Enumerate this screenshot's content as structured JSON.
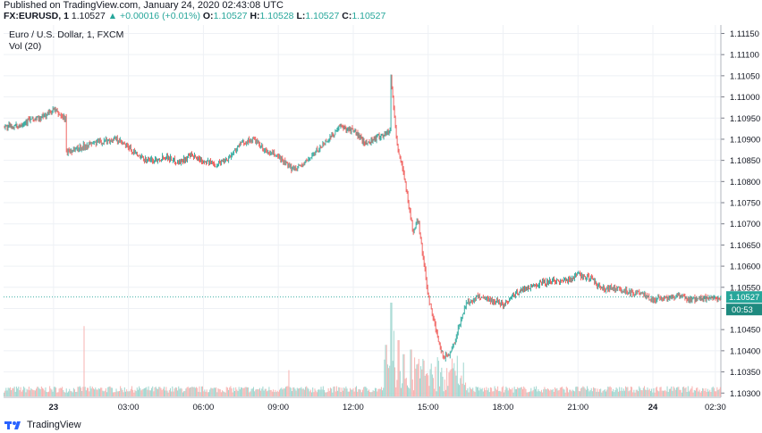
{
  "header": {
    "published": "Published on TradingView.com, January 24, 2020 02:43:08 UTC",
    "symbol": "FX:EURUSD, 1",
    "last": "1.10527",
    "change": "▲ +0.00016 (+0.01%)",
    "o_label": "O:",
    "o_value": "1.10527",
    "h_label": "H:",
    "h_value": "1.10528",
    "l_label": "L:",
    "l_value": "1.10527",
    "c_label": "C:",
    "c_value": "1.10527"
  },
  "legend": {
    "series": "Euro / U.S. Dollar, 1, FXCM",
    "volume": "Vol (20)"
  },
  "footer": {
    "brand": "TradingView"
  },
  "colors": {
    "up": "#26a69a",
    "down": "#ef5350",
    "grid": "#eef1f5",
    "price_line": "#26a69a"
  },
  "chart_data": {
    "type": "candlestick",
    "title": "Euro / U.S. Dollar, 1, FXCM",
    "y_ticks": [
      "1.11150",
      "1.11100",
      "1.11050",
      "1.11000",
      "1.10950",
      "1.10900",
      "1.10850",
      "1.10800",
      "1.10750",
      "1.10700",
      "1.10650",
      "1.10600",
      "1.10550",
      "1.10500",
      "1.10450",
      "1.10400",
      "1.10350",
      "1.10300"
    ],
    "ylim": [
      1.1029,
      1.1117
    ],
    "x_ticks": [
      "23",
      "03:00",
      "06:00",
      "09:00",
      "12:00",
      "15:00",
      "18:00",
      "21:00",
      "24",
      "02:30"
    ],
    "x_tick_hours": [
      0,
      3,
      6,
      9,
      12,
      15,
      18,
      21,
      24,
      26.5
    ],
    "x_range_hours": [
      -2.0,
      26.72
    ],
    "last_price_label": "1.10527",
    "countdown_label": "00:53",
    "path_hours": [
      -2.0,
      -1.5,
      -1.0,
      -0.5,
      0.0,
      0.3,
      0.5,
      0.5,
      0.8,
      1.5,
      2.5,
      3.0,
      3.5,
      4.0,
      4.5,
      5.0,
      5.5,
      6.0,
      6.5,
      7.0,
      7.5,
      8.0,
      8.5,
      9.0,
      9.5,
      10.0,
      10.5,
      11.0,
      11.5,
      12.0,
      12.5,
      13.0,
      13.5,
      13.5,
      13.6,
      13.8,
      14.0,
      14.2,
      14.4,
      14.6,
      14.8,
      15.0,
      15.2,
      15.4,
      15.6,
      15.8,
      16.0,
      16.2,
      16.5,
      16.8,
      17.0,
      17.5,
      18.0,
      18.5,
      19.0,
      19.5,
      20.0,
      20.5,
      21.0,
      21.5,
      22.0,
      22.3,
      22.6,
      23.0,
      23.5,
      24.0,
      24.5,
      25.0,
      25.5,
      26.0,
      26.5,
      26.72
    ],
    "path_values": [
      1.1093,
      1.1093,
      1.10945,
      1.1095,
      1.1097,
      1.10955,
      1.1095,
      1.1087,
      1.10875,
      1.1089,
      1.109,
      1.1088,
      1.10855,
      1.1085,
      1.1086,
      1.10845,
      1.1086,
      1.1085,
      1.1084,
      1.10855,
      1.1089,
      1.109,
      1.1087,
      1.1086,
      1.1083,
      1.1084,
      1.1087,
      1.109,
      1.1093,
      1.1092,
      1.1089,
      1.10905,
      1.1092,
      1.11055,
      1.10985,
      1.10865,
      1.1083,
      1.1075,
      1.1068,
      1.1071,
      1.1062,
      1.1053,
      1.1048,
      1.1042,
      1.10385,
      1.1039,
      1.1041,
      1.1045,
      1.1051,
      1.1052,
      1.1053,
      1.1052,
      1.1051,
      1.10535,
      1.1055,
      1.1056,
      1.10565,
      1.10565,
      1.1058,
      1.1057,
      1.10545,
      1.1055,
      1.10545,
      1.1054,
      1.10535,
      1.1052,
      1.10525,
      1.1053,
      1.1052,
      1.10525,
      1.1052,
      1.10527
    ],
    "volume_spikes": [
      {
        "hour": 1.2,
        "value": 0.75
      },
      {
        "hour": 13.5,
        "value": 1.0
      },
      {
        "hour": 13.3,
        "value": 0.55
      },
      {
        "hour": 13.6,
        "value": 0.7
      },
      {
        "hour": 13.8,
        "value": 0.6
      },
      {
        "hour": 14.0,
        "value": 0.45
      },
      {
        "hour": 14.3,
        "value": 0.5
      },
      {
        "hour": 14.6,
        "value": 0.4
      },
      {
        "hour": 15.1,
        "value": 0.35
      },
      {
        "hour": 15.4,
        "value": 0.38
      },
      {
        "hour": 9.4,
        "value": 0.28
      },
      {
        "hour": 16.0,
        "value": 0.3
      }
    ]
  }
}
